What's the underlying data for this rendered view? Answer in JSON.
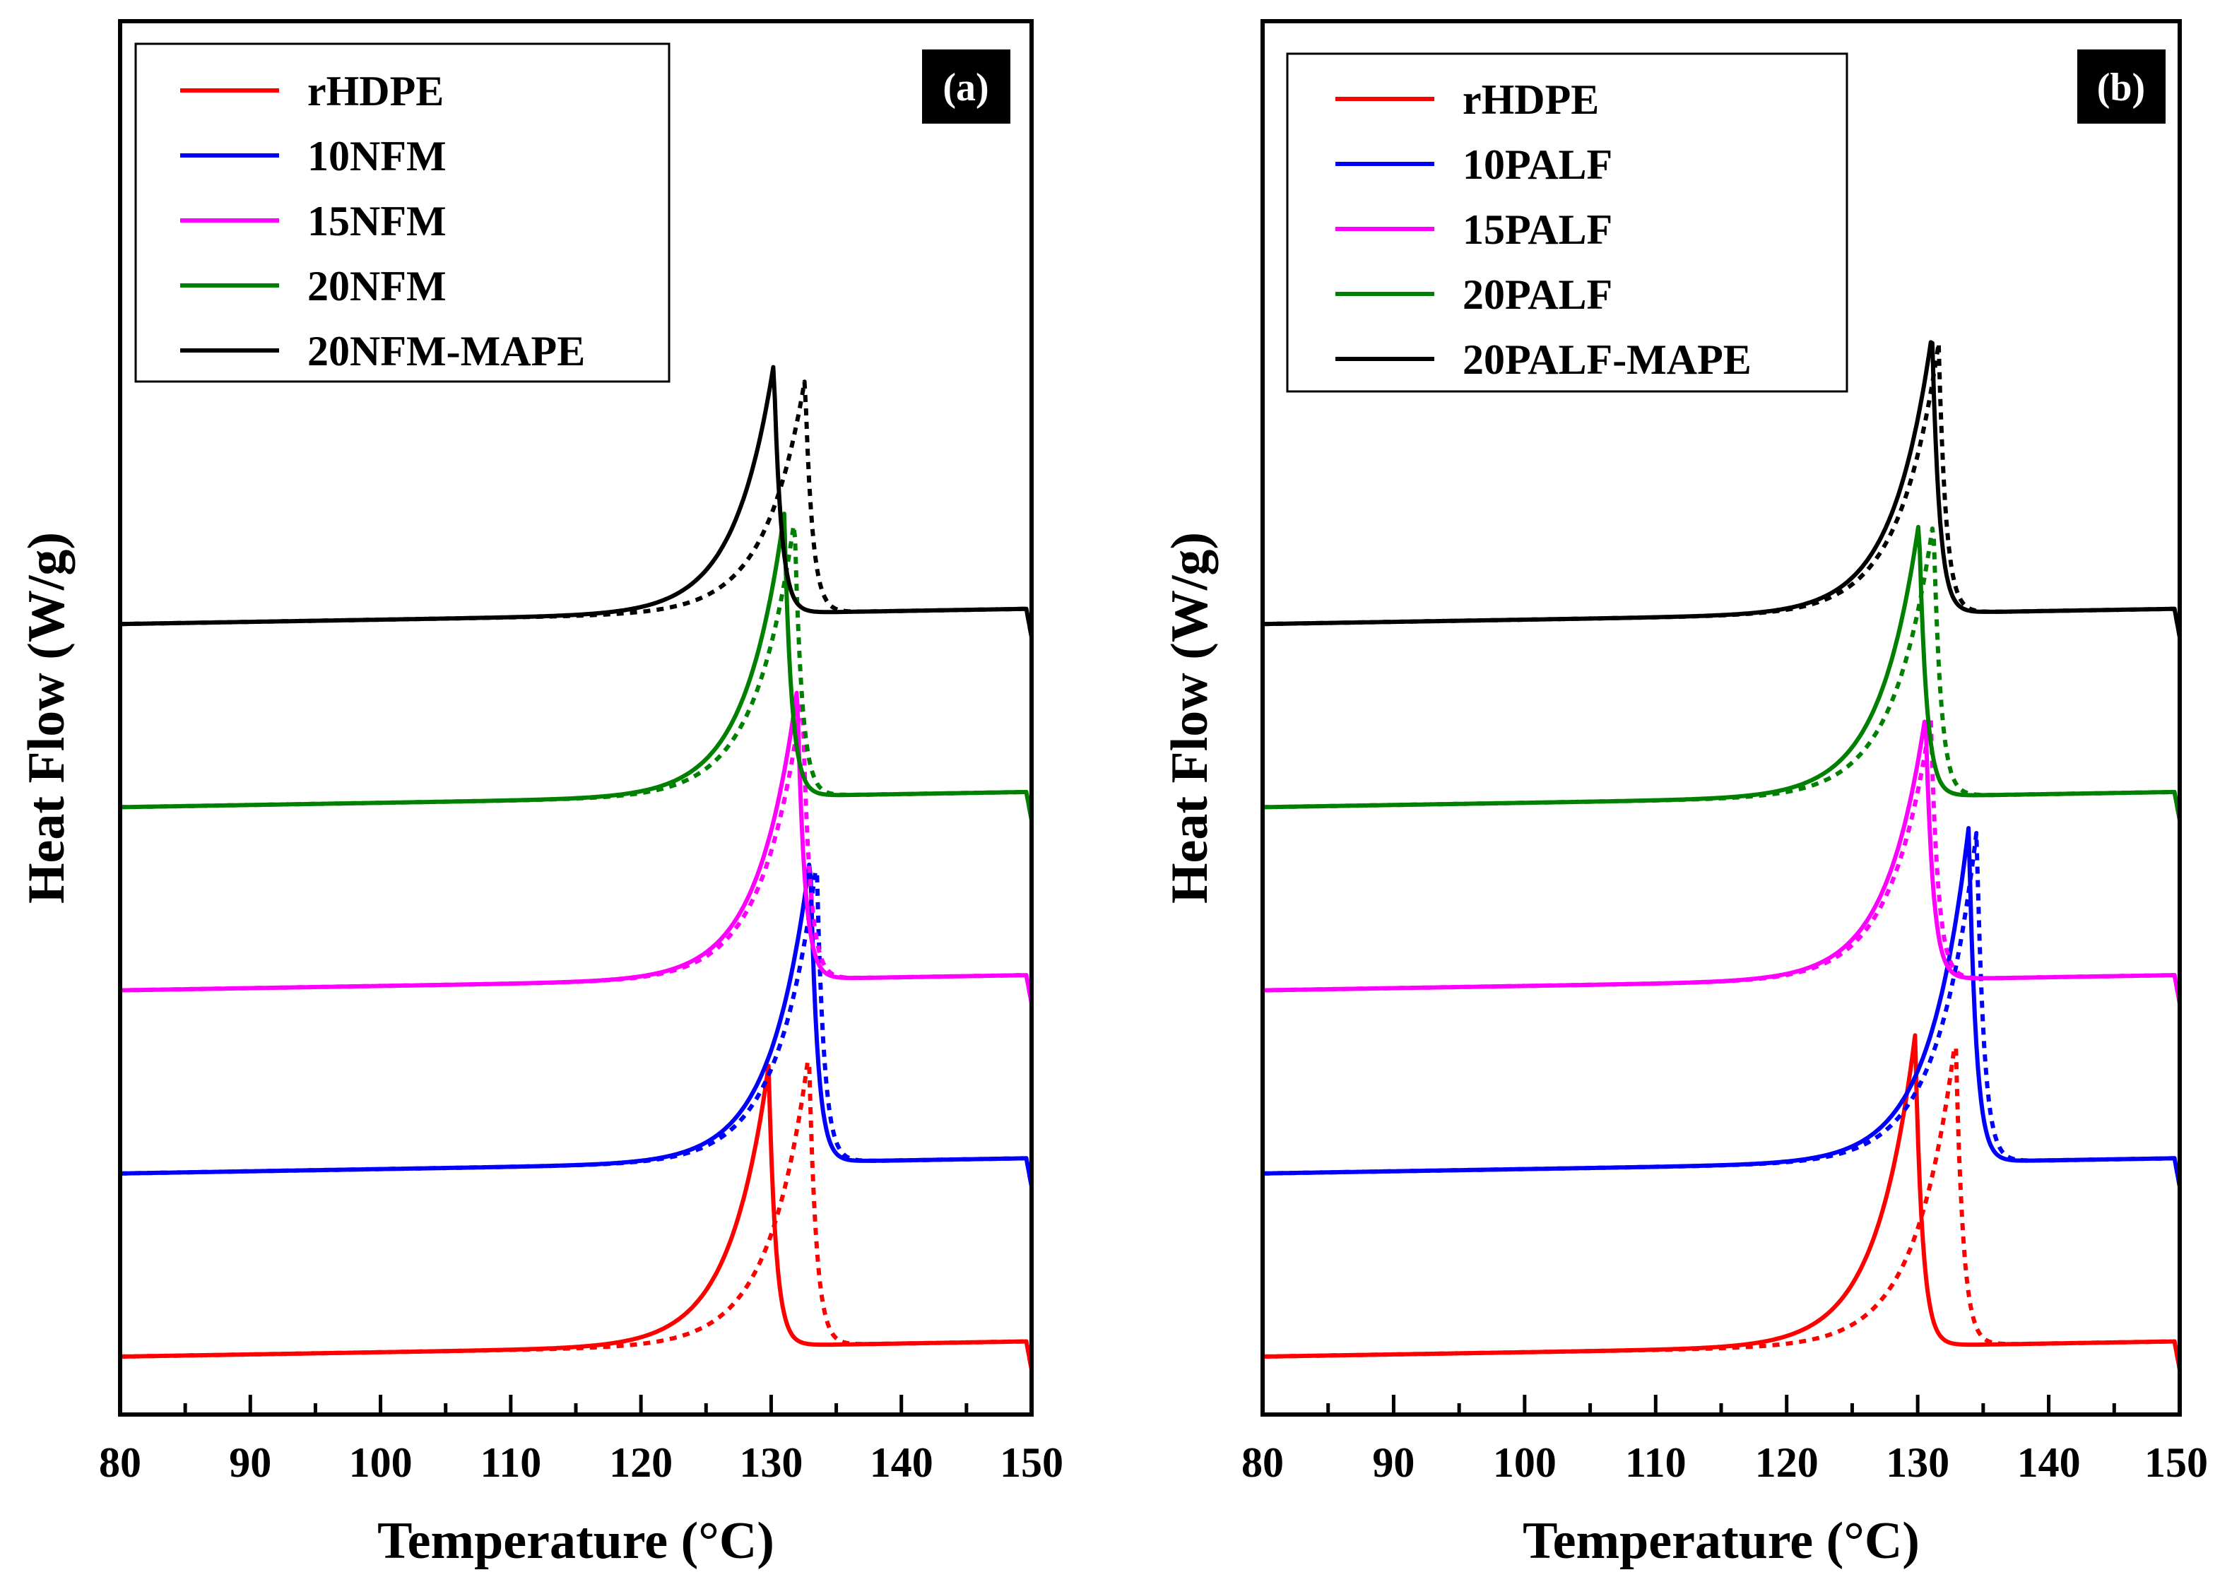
{
  "chart_data": [
    {
      "type": "line",
      "panel_label": "(a)",
      "xlabel": "Temperature (°C)",
      "ylabel": "Heat Flow (W/g)",
      "xlim": [
        80,
        150
      ],
      "x_ticks": [
        "80",
        "90",
        "100",
        "110",
        "120",
        "130",
        "140",
        "150"
      ],
      "y_ticks_shown": false,
      "legend_position": "top-left",
      "line_styles": [
        "solid",
        "dotted"
      ],
      "series": [
        {
          "name": "rHDPE",
          "color": "#ff0000",
          "offset": 0.0,
          "solid_peak_x": 129.8,
          "solid_peak_height": 1.1,
          "dotted_peak_x": 132.9,
          "dotted_peak_height": 1.15
        },
        {
          "name": "10NFM",
          "color": "#0000ff",
          "offset": 0.72,
          "solid_peak_x": 133.0,
          "solid_peak_height": 1.2,
          "dotted_peak_x": 133.5,
          "dotted_peak_height": 1.18
        },
        {
          "name": "15NFM",
          "color": "#ff00ff",
          "offset": 1.44,
          "solid_peak_x": 132.0,
          "solid_peak_height": 1.14,
          "dotted_peak_x": 132.4,
          "dotted_peak_height": 1.12
        },
        {
          "name": "20NFM",
          "color": "#008000",
          "offset": 2.16,
          "solid_peak_x": 131.0,
          "solid_peak_height": 1.11,
          "dotted_peak_x": 131.8,
          "dotted_peak_height": 1.09
        },
        {
          "name": "20NFM-MAPE",
          "color": "#000000",
          "offset": 2.88,
          "solid_peak_x": 130.2,
          "solid_peak_height": 0.98,
          "dotted_peak_x": 132.6,
          "dotted_peak_height": 0.92
        }
      ]
    },
    {
      "type": "line",
      "panel_label": "(b)",
      "xlabel": "Temperature (°C)",
      "ylabel": "Heat Flow (W/g)",
      "xlim": [
        80,
        150
      ],
      "x_ticks": [
        "80",
        "90",
        "100",
        "110",
        "120",
        "130",
        "140",
        "150"
      ],
      "y_ticks_shown": false,
      "legend_position": "top-left",
      "line_styles": [
        "solid",
        "dotted"
      ],
      "series": [
        {
          "name": "rHDPE",
          "color": "#ff0000",
          "offset": 0.0,
          "solid_peak_x": 129.8,
          "solid_peak_height": 1.22,
          "dotted_peak_x": 132.9,
          "dotted_peak_height": 1.21
        },
        {
          "name": "10PALF",
          "color": "#0000ff",
          "offset": 0.72,
          "solid_peak_x": 133.9,
          "solid_peak_height": 1.32,
          "dotted_peak_x": 134.5,
          "dotted_peak_height": 1.3
        },
        {
          "name": "15PALF",
          "color": "#ff00ff",
          "offset": 1.44,
          "solid_peak_x": 130.6,
          "solid_peak_height": 1.04,
          "dotted_peak_x": 131.0,
          "dotted_peak_height": 1.03
        },
        {
          "name": "20PALF",
          "color": "#008000",
          "offset": 2.16,
          "solid_peak_x": 130.1,
          "solid_peak_height": 1.08,
          "dotted_peak_x": 131.2,
          "dotted_peak_height": 1.08
        },
        {
          "name": "20PALF-MAPE",
          "color": "#000000",
          "offset": 2.88,
          "solid_peak_x": 131.1,
          "solid_peak_height": 1.1,
          "dotted_peak_x": 131.6,
          "dotted_peak_height": 1.06
        }
      ]
    }
  ]
}
